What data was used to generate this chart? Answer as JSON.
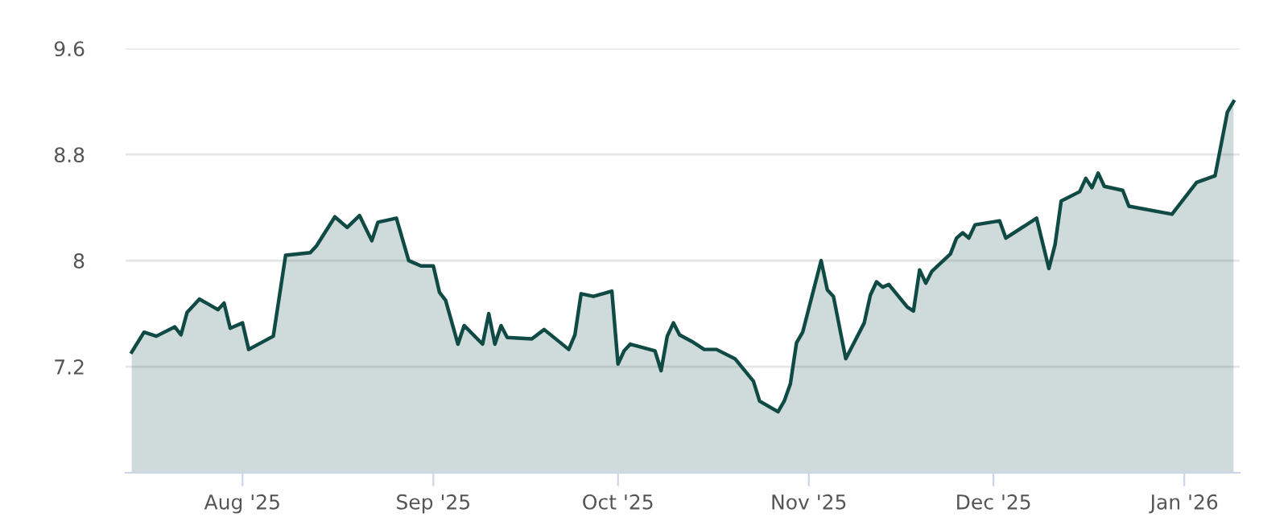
{
  "chart_data": {
    "type": "area",
    "x": [
      "2025-07-14",
      "2025-07-16",
      "2025-07-18",
      "2025-07-21",
      "2025-07-22",
      "2025-07-23",
      "2025-07-25",
      "2025-07-28",
      "2025-07-29",
      "2025-07-30",
      "2025-08-01",
      "2025-08-02",
      "2025-08-06",
      "2025-08-08",
      "2025-08-12",
      "2025-08-13",
      "2025-08-16",
      "2025-08-18",
      "2025-08-20",
      "2025-08-22",
      "2025-08-23",
      "2025-08-26",
      "2025-08-28",
      "2025-08-30",
      "2025-09-01",
      "2025-09-02",
      "2025-09-03",
      "2025-09-05",
      "2025-09-06",
      "2025-09-09",
      "2025-09-10",
      "2025-09-11",
      "2025-09-12",
      "2025-09-13",
      "2025-09-17",
      "2025-09-19",
      "2025-09-23",
      "2025-09-24",
      "2025-09-25",
      "2025-09-27",
      "2025-09-30",
      "2025-10-01",
      "2025-10-02",
      "2025-10-03",
      "2025-10-07",
      "2025-10-08",
      "2025-10-09",
      "2025-10-10",
      "2025-10-11",
      "2025-10-13",
      "2025-10-15",
      "2025-10-17",
      "2025-10-20",
      "2025-10-23",
      "2025-10-24",
      "2025-10-27",
      "2025-10-28",
      "2025-10-29",
      "2025-10-30",
      "2025-10-31",
      "2025-11-03",
      "2025-11-04",
      "2025-11-05",
      "2025-11-07",
      "2025-11-10",
      "2025-11-11",
      "2025-11-12",
      "2025-11-13",
      "2025-11-14",
      "2025-11-17",
      "2025-11-18",
      "2025-11-19",
      "2025-11-20",
      "2025-11-21",
      "2025-11-24",
      "2025-11-25",
      "2025-11-26",
      "2025-11-27",
      "2025-11-28",
      "2025-12-02",
      "2025-12-03",
      "2025-12-08",
      "2025-12-10",
      "2025-12-11",
      "2025-12-12",
      "2025-12-15",
      "2025-12-16",
      "2025-12-17",
      "2025-12-18",
      "2025-12-19",
      "2025-12-22",
      "2025-12-23",
      "2025-12-30",
      "2026-01-03",
      "2026-01-06",
      "2026-01-08",
      "2026-01-09"
    ],
    "series": [
      {
        "color": "#0f4a45",
        "values": [
          7.31,
          7.46,
          7.43,
          7.5,
          7.44,
          7.61,
          7.71,
          7.63,
          7.68,
          7.49,
          7.53,
          7.33,
          7.43,
          8.04,
          8.06,
          8.11,
          8.33,
          8.25,
          8.34,
          8.15,
          8.29,
          8.32,
          8.0,
          7.96,
          7.96,
          7.76,
          7.7,
          7.37,
          7.51,
          7.37,
          7.6,
          7.37,
          7.51,
          7.42,
          7.41,
          7.48,
          7.33,
          7.44,
          7.75,
          7.73,
          7.77,
          7.22,
          7.32,
          7.37,
          7.32,
          7.17,
          7.43,
          7.53,
          7.44,
          7.39,
          7.33,
          7.33,
          7.26,
          7.09,
          6.94,
          6.86,
          6.94,
          7.07,
          7.38,
          7.46,
          8.0,
          7.78,
          7.73,
          7.26,
          7.53,
          7.74,
          7.84,
          7.8,
          7.82,
          7.65,
          7.62,
          7.93,
          7.83,
          7.92,
          8.05,
          8.17,
          8.21,
          8.17,
          8.27,
          8.3,
          8.17,
          8.32,
          7.94,
          8.12,
          8.45,
          8.52,
          8.62,
          8.55,
          8.66,
          8.56,
          8.53,
          8.41,
          8.35,
          8.59,
          8.64,
          9.12,
          9.2
        ]
      }
    ],
    "xlim": [
      "2025-07-13",
      "2026-01-10"
    ],
    "xticks": [
      {
        "value": "2025-08-01",
        "label": "Aug '25"
      },
      {
        "value": "2025-09-01",
        "label": "Sep '25"
      },
      {
        "value": "2025-10-01",
        "label": "Oct '25"
      },
      {
        "value": "2025-11-01",
        "label": "Nov '25"
      },
      {
        "value": "2025-12-01",
        "label": "Dec '25"
      },
      {
        "value": "2026-01-01",
        "label": "Jan '26"
      }
    ],
    "ylim": [
      6.4,
      9.6
    ],
    "yticks": [
      7.2,
      8,
      8.8,
      9.6
    ],
    "grid": "y"
  }
}
